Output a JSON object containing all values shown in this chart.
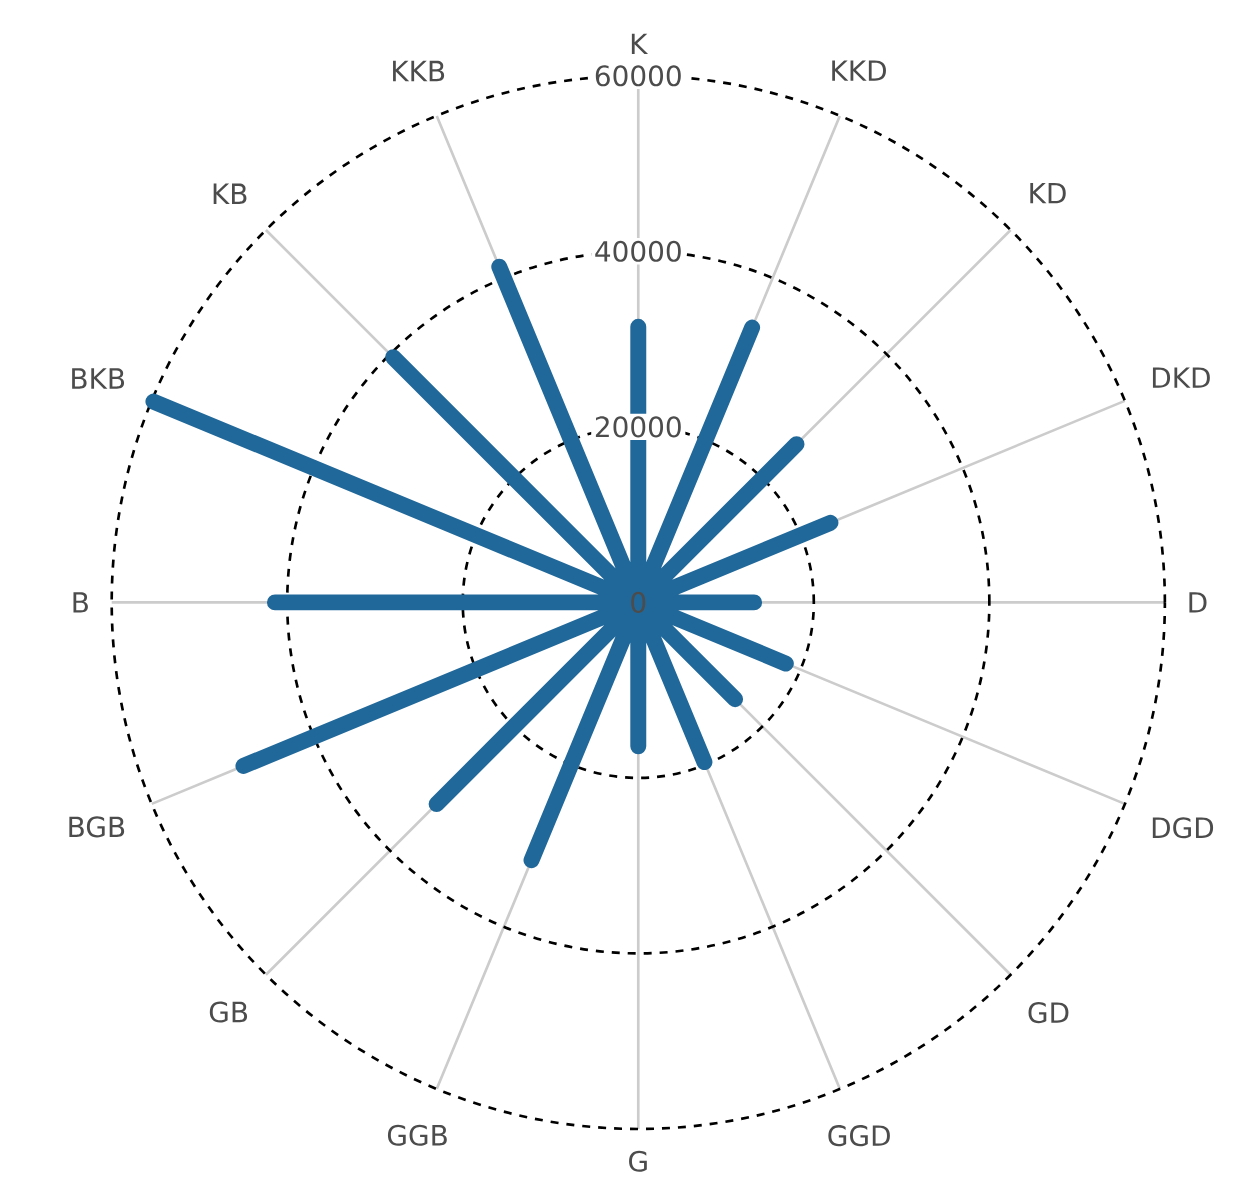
{
  "chart_data": {
    "type": "radar",
    "categories": [
      "K",
      "KKD",
      "KD",
      "DKD",
      "D",
      "DGD",
      "GD",
      "GGD",
      "G",
      "GGB",
      "GB",
      "BGB",
      "B",
      "BKB",
      "KB",
      "KKB"
    ],
    "series": [
      {
        "color": "#21689a",
        "values": [
          31400,
          33900,
          25500,
          23700,
          13200,
          18200,
          15600,
          19700,
          16400,
          31800,
          32500,
          48700,
          41400,
          59800,
          39500,
          41400
        ]
      }
    ],
    "ylim": [
      0,
      60000
    ],
    "yticks": [
      0,
      20000,
      40000,
      60000
    ],
    "grid": true
  }
}
